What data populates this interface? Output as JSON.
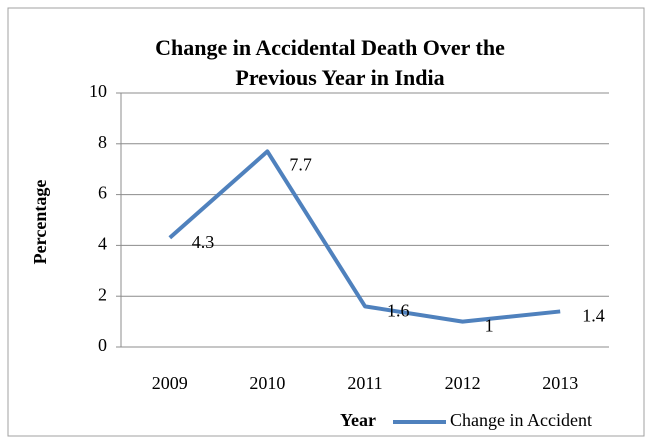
{
  "chart_data": {
    "type": "line",
    "title": [
      "Change in Accidental Death Over the",
      "Previous Year  in India"
    ],
    "x_label": "Year",
    "y_label": "Percentage",
    "categories": [
      "2009",
      "2010",
      "2011",
      "2012",
      "2013"
    ],
    "series": [
      {
        "name": "Change in Accident",
        "color": "#4f81bd",
        "values": [
          4.3,
          7.7,
          1.6,
          1,
          1.4
        ]
      }
    ],
    "ylim": [
      0,
      10
    ],
    "yticks": [
      0,
      2,
      4,
      6,
      8,
      10
    ],
    "grid": true,
    "legend": "bottom"
  }
}
